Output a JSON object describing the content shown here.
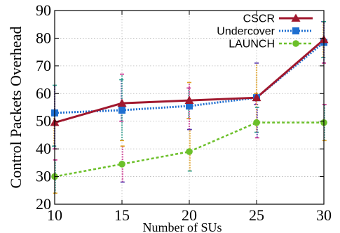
{
  "chart_data": {
    "type": "line",
    "xlabel": "Number of SUs",
    "ylabel": "Control Packets Overhead",
    "x": [
      10,
      15,
      20,
      25,
      30
    ],
    "xlim": [
      10,
      30
    ],
    "ylim": [
      20,
      90
    ],
    "xticks": [
      "10",
      "15",
      "20",
      "25",
      "30"
    ],
    "yticks": [
      "20",
      "30",
      "40",
      "50",
      "60",
      "70",
      "80",
      "90"
    ],
    "grid": true,
    "legend_position": "top-right",
    "series": [
      {
        "name": "CSCR",
        "color": "#a0182e",
        "marker": "triangle",
        "style": "solid",
        "values": [
          49.5,
          56.5,
          57.5,
          58.5,
          79.5
        ],
        "err_low": [
          41,
          50,
          51,
          56,
          73
        ],
        "err_high": [
          53,
          65,
          62,
          60,
          86
        ]
      },
      {
        "name": "Undercover",
        "color": "#1f6fd0",
        "marker": "square",
        "style": "dotted",
        "values": [
          53,
          54,
          55.5,
          58.5,
          78.5
        ],
        "err_low": [
          40,
          43,
          47,
          46,
          71
        ],
        "err_high": [
          63,
          67,
          64,
          71,
          86
        ]
      },
      {
        "name": "LAUNCH",
        "color": "#6cc02a",
        "marker": "circle",
        "style": "dashed",
        "values": [
          30,
          34.5,
          39,
          49.5,
          49.5
        ],
        "err_low": [
          24,
          28,
          32,
          44,
          43
        ],
        "err_high": [
          36,
          41,
          47,
          55,
          56
        ]
      }
    ]
  }
}
